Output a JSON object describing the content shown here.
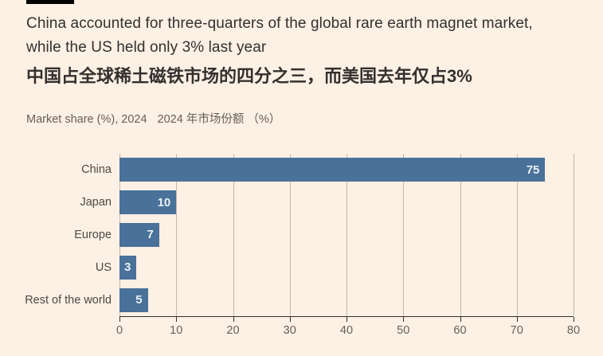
{
  "meta": {
    "background_color": "#fdf0e4",
    "accent_rule_color": "#000000",
    "text_color": "#33302e",
    "muted_text_color": "#66605c"
  },
  "header": {
    "title_line1": "China accounted for three-quarters of the global rare earth magnet market,",
    "title_line2": "while the US held only 3% last year",
    "title_zh": "中国占全球稀土磁铁市场的四分之三，而美国去年仅占3%",
    "subtitle_en": "Market share (%), 2024",
    "subtitle_zh": "2024 年市场份额 （%）"
  },
  "chart_data": {
    "type": "bar",
    "orientation": "horizontal",
    "title": "China accounted for three-quarters of the global rare earth magnet market, while the US held only 3% last year",
    "subtitle": "Market share (%), 2024",
    "categories": [
      "China",
      "Japan",
      "Europe",
      "US",
      "Rest of the world"
    ],
    "values": [
      75,
      10,
      7,
      3,
      5
    ],
    "xlabel": "",
    "ylabel": "",
    "xlim": [
      0,
      80
    ],
    "xticks": [
      0,
      10,
      20,
      30,
      40,
      50,
      60,
      70,
      80
    ],
    "grid": true,
    "legend": false,
    "bar_color": "#4a7199",
    "value_label_color": "#e9f1f8",
    "gridline_color": "#c3b9ac",
    "axis_color": "#33302e"
  }
}
